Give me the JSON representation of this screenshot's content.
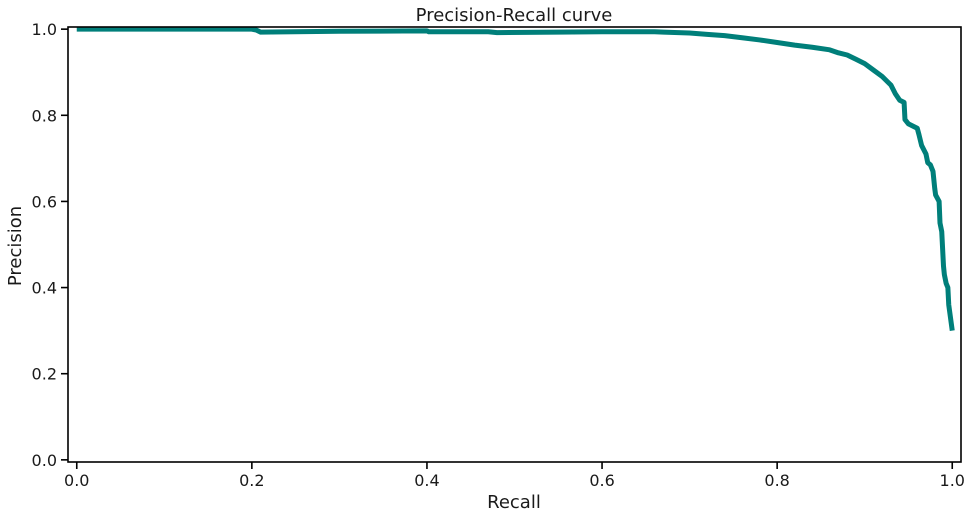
{
  "chart_data": {
    "type": "line",
    "title": "Precision-Recall curve",
    "xlabel": "Recall",
    "ylabel": "Precision",
    "xlim": [
      -0.01,
      1.01
    ],
    "ylim": [
      -0.005,
      1.005
    ],
    "xticks": [
      0.0,
      0.2,
      0.4,
      0.6,
      0.8,
      1.0
    ],
    "xtick_labels": [
      "0.0",
      "0.2",
      "0.4",
      "0.6",
      "0.8",
      "1.0"
    ],
    "yticks": [
      0.0,
      0.2,
      0.4,
      0.6,
      0.8,
      1.0
    ],
    "ytick_labels": [
      "0.0",
      "0.2",
      "0.4",
      "0.6",
      "0.8",
      "1.0"
    ],
    "grid": false,
    "legend": "none",
    "colors": {
      "line": "#007f7a",
      "axes": "#000000"
    },
    "series": [
      {
        "x": [
          0.0,
          0.1,
          0.2,
          0.205,
          0.21,
          0.3,
          0.4,
          0.402,
          0.47,
          0.48,
          0.55,
          0.6,
          0.66,
          0.67,
          0.7,
          0.72,
          0.74,
          0.76,
          0.78,
          0.8,
          0.82,
          0.84,
          0.86,
          0.87,
          0.88,
          0.89,
          0.9,
          0.91,
          0.92,
          0.93,
          0.935,
          0.94,
          0.945,
          0.946,
          0.95,
          0.96,
          0.962,
          0.965,
          0.97,
          0.972,
          0.975,
          0.978,
          0.98,
          0.981,
          0.985,
          0.986,
          0.988,
          0.989,
          0.99,
          0.991,
          0.993,
          0.995,
          0.996,
          0.998,
          1.0
        ],
        "y": [
          1.0,
          1.0,
          1.0,
          0.998,
          0.993,
          0.995,
          0.996,
          0.994,
          0.994,
          0.992,
          0.993,
          0.994,
          0.994,
          0.993,
          0.991,
          0.988,
          0.985,
          0.98,
          0.975,
          0.969,
          0.963,
          0.958,
          0.952,
          0.945,
          0.94,
          0.93,
          0.92,
          0.905,
          0.89,
          0.87,
          0.85,
          0.835,
          0.83,
          0.79,
          0.78,
          0.77,
          0.755,
          0.73,
          0.71,
          0.69,
          0.685,
          0.67,
          0.63,
          0.615,
          0.6,
          0.55,
          0.53,
          0.49,
          0.45,
          0.43,
          0.41,
          0.4,
          0.36,
          0.33,
          0.3
        ]
      }
    ]
  }
}
